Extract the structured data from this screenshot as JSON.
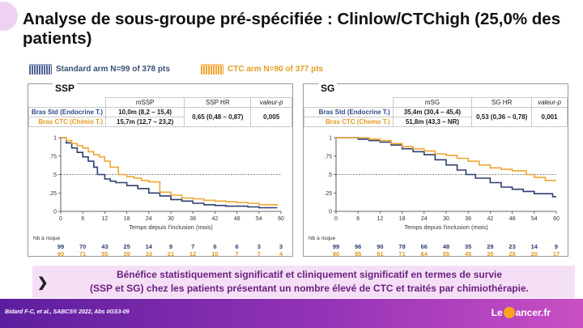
{
  "title": "Analyse de sous-groupe pré-spécifiée : Clinlow/CTChigh (25,0% des patients)",
  "legend": {
    "std": {
      "label": "Standard arm N=99 of 378 pts",
      "color": "#3a4f75"
    },
    "ctc": {
      "label": "CTC arm N=90 of 377 pts",
      "color": "#f0a533"
    }
  },
  "chart_data": [
    {
      "type": "line",
      "panel_label": "SSP",
      "xlabel": "Temps depuis l'inclusion (mois)",
      "ylabel": "",
      "xlim": [
        0,
        60
      ],
      "ylim": [
        0,
        1
      ],
      "x_ticks": [
        "0",
        "6",
        "12",
        "18",
        "24",
        "30",
        "36",
        "42",
        "48",
        "54",
        "60"
      ],
      "y_ticks": [
        "0",
        ".25",
        ".5",
        ".75",
        "1"
      ],
      "reference_line": 0.5,
      "stats_table": {
        "headers": [
          "mSSP",
          "SSP HR",
          "valeur-p"
        ],
        "rows": [
          {
            "label": "Bras Std (Endocrine T.)",
            "median": "10,0m (8,2 – 15,4)"
          },
          {
            "label": "Bras CTC (Chimio T.)",
            "median": "15,7m (12,7 – 23,2)"
          }
        ],
        "hr": "0,65 (0,48 – 0,87)",
        "p": "0,005"
      },
      "series": [
        {
          "name": "Bras Std (Endocrine T.)",
          "color": "#2d3f6e",
          "x": [
            0,
            1.5,
            3,
            4.5,
            6,
            7.5,
            9,
            10,
            12,
            13.5,
            15,
            18,
            21,
            24,
            27,
            30,
            33,
            36,
            39,
            42,
            45,
            48,
            51,
            54,
            57,
            59
          ],
          "y": [
            1,
            0.93,
            0.86,
            0.8,
            0.74,
            0.68,
            0.6,
            0.5,
            0.44,
            0.41,
            0.39,
            0.35,
            0.31,
            0.25,
            0.21,
            0.16,
            0.14,
            0.11,
            0.09,
            0.08,
            0.07,
            0.07,
            0.06,
            0.05,
            0.05,
            0.05
          ]
        },
        {
          "name": "Bras CTC (Chimio T.)",
          "color": "#f0a533",
          "x": [
            0,
            1.5,
            3,
            4.5,
            6,
            7.5,
            9,
            10.5,
            12,
            13.5,
            15.7,
            18,
            20,
            22,
            24,
            27,
            30,
            33,
            36,
            39,
            42,
            45,
            48,
            51,
            54,
            57,
            59
          ],
          "y": [
            1,
            0.96,
            0.92,
            0.89,
            0.86,
            0.81,
            0.77,
            0.74,
            0.68,
            0.6,
            0.5,
            0.47,
            0.45,
            0.42,
            0.4,
            0.26,
            0.22,
            0.18,
            0.17,
            0.15,
            0.14,
            0.13,
            0.12,
            0.11,
            0.09,
            0.09,
            0.08
          ]
        }
      ],
      "risk": {
        "title": "Nb à risque",
        "std": [
          "99",
          "70",
          "43",
          "25",
          "14",
          "9",
          "7",
          "6",
          "6",
          "3",
          "3"
        ],
        "ctc": [
          "90",
          "71",
          "55",
          "39",
          "33",
          "21",
          "12",
          "10",
          "7",
          "7",
          "4"
        ]
      }
    },
    {
      "type": "line",
      "panel_label": "SG",
      "xlabel": "Temps depuis l'inclusion (mois)",
      "ylabel": "",
      "xlim": [
        0,
        60
      ],
      "ylim": [
        0,
        1
      ],
      "x_ticks": [
        "0",
        "6",
        "12",
        "18",
        "24",
        "30",
        "36",
        "42",
        "48",
        "54",
        "60"
      ],
      "y_ticks": [
        "0",
        ".25",
        ".5",
        ".75",
        "1"
      ],
      "reference_line": 0.5,
      "stats_table": {
        "headers": [
          "mSG",
          "SG HR",
          "valeur-p"
        ],
        "rows": [
          {
            "label": "Bras Std (Endocrine T.)",
            "median": "35,4m (30,4 – 45,4)"
          },
          {
            "label": "Bras CTC (Chemo T.)",
            "median": "51,8m (43,3 – NR)"
          }
        ],
        "hr": "0,53 (0,36 – 0,78)",
        "p": "0,001"
      },
      "series": [
        {
          "name": "Bras Std (Endocrine T.)",
          "color": "#2d3f6e",
          "x": [
            0,
            3,
            6,
            9,
            12,
            15,
            18,
            21,
            24,
            27,
            30,
            33,
            35.4,
            38,
            42,
            45,
            48,
            51,
            54,
            57,
            59,
            60
          ],
          "y": [
            1,
            1,
            0.98,
            0.96,
            0.94,
            0.9,
            0.85,
            0.81,
            0.77,
            0.7,
            0.63,
            0.56,
            0.5,
            0.45,
            0.39,
            0.33,
            0.3,
            0.27,
            0.24,
            0.24,
            0.2,
            0.2
          ]
        },
        {
          "name": "Bras CTC (Chemo T.)",
          "color": "#f0a533",
          "x": [
            0,
            3,
            6,
            9,
            12,
            15,
            18,
            21,
            24,
            27,
            30,
            33,
            36,
            39,
            42,
            45,
            48,
            51.8,
            54,
            57,
            60
          ],
          "y": [
            1,
            1,
            1,
            0.98,
            0.96,
            0.92,
            0.88,
            0.85,
            0.82,
            0.78,
            0.76,
            0.72,
            0.68,
            0.63,
            0.59,
            0.57,
            0.55,
            0.5,
            0.46,
            0.42,
            0.42
          ]
        }
      ],
      "risk": {
        "title": "Nb à risque",
        "std": [
          "99",
          "96",
          "90",
          "78",
          "66",
          "48",
          "35",
          "29",
          "23",
          "14",
          "9"
        ],
        "ctc": [
          "90",
          "85",
          "81",
          "71",
          "64",
          "55",
          "45",
          "35",
          "28",
          "20",
          "17"
        ]
      }
    }
  ],
  "conclusion": {
    "line1": "Bénéfice statistiquement significatif et cliniquement significatif en termes de survie",
    "line2": "(SSP et SG) chez les patients présentant un nombre élevé de CTC et traités par chimiothérapie."
  },
  "footer": {
    "reference": "Bidard F-C, et al., SABCS® 2022, Abs #GS3-09",
    "logo_left": "Le ",
    "logo_right": "ancer.fr"
  }
}
